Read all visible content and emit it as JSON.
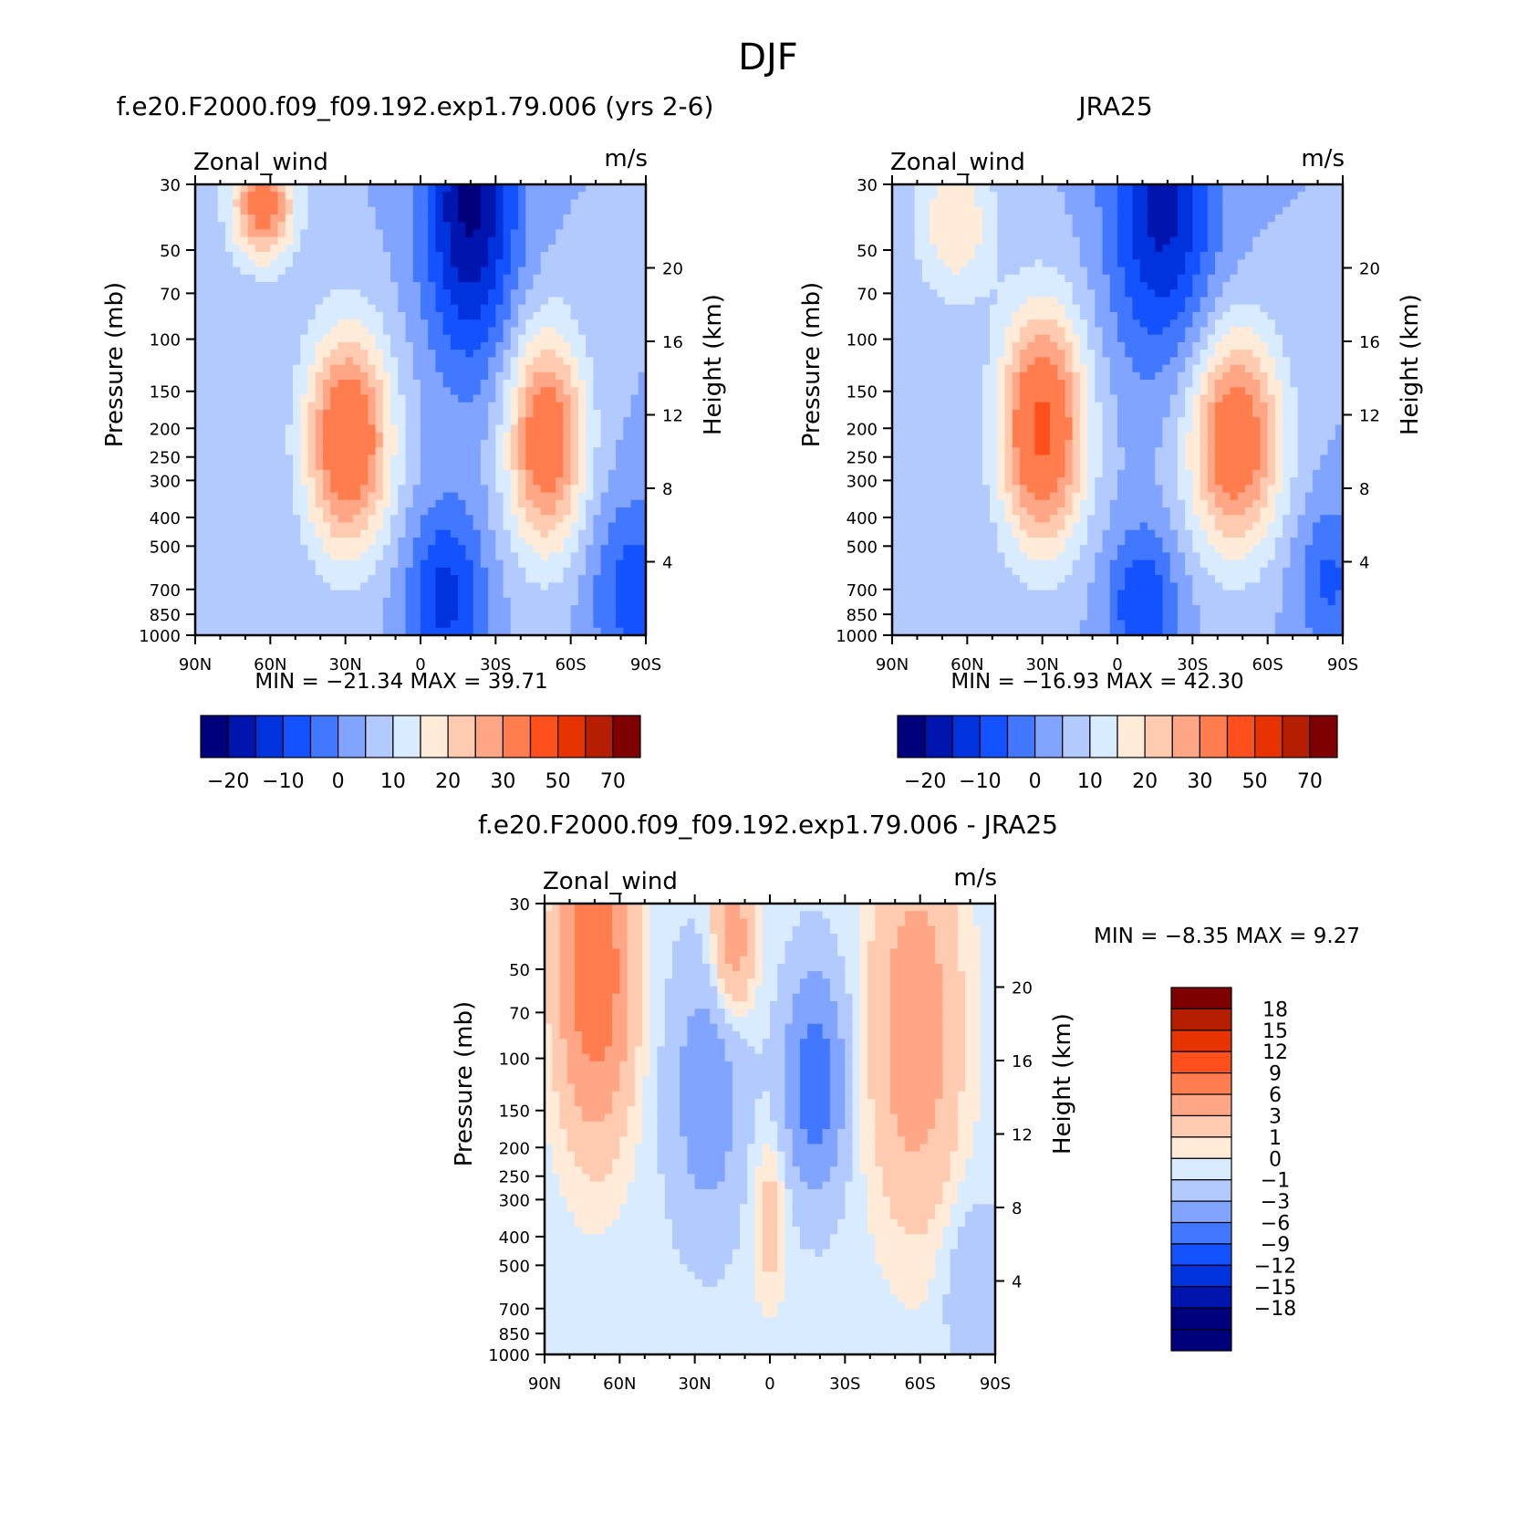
{
  "figure": {
    "title": "DJF"
  },
  "chart_data": [
    {
      "type": "heatmap",
      "id": "model",
      "title": "f.e20.F2000.f09_f09.192.exp1.79.006 (yrs 2-6)",
      "left_label": "Zonal_wind",
      "right_label": "m/s",
      "ylabel": "Pressure (mb)",
      "ylabel_right": "Height (km)",
      "x_ticks": [
        "90N",
        "60N",
        "30N",
        "0",
        "30S",
        "60S",
        "90S"
      ],
      "x_tick_values": [
        90,
        60,
        30,
        0,
        -30,
        -60,
        -90
      ],
      "x_range": [
        90,
        -90
      ],
      "y_ticks": [
        "30",
        "50",
        "70",
        "100",
        "150",
        "200",
        "250",
        "300",
        "400",
        "500",
        "700",
        "850",
        "1000"
      ],
      "y_tick_values": [
        30,
        50,
        70,
        100,
        150,
        200,
        250,
        300,
        400,
        500,
        700,
        850,
        1000
      ],
      "y_range": [
        1000,
        30
      ],
      "height_ticks": [
        "4",
        "8",
        "12",
        "16",
        "20"
      ],
      "min_label": "MIN =",
      "min_value": "-21.34",
      "max_label": "MAX =",
      "max_value": "39.71",
      "colorbar_labels": [
        "-20",
        "-10",
        "0",
        "10",
        "20",
        "30",
        "50",
        "70"
      ],
      "colorbar_colors": [
        "#00007d",
        "#0014ae",
        "#0033de",
        "#1452ff",
        "#4178ff",
        "#80a4ff",
        "#b3caff",
        "#d9ecff",
        "#ffebd8",
        "#ffcbb0",
        "#ffa686",
        "#ff7d4e",
        "#ff4f1c",
        "#e63300",
        "#b51e00",
        "#7f0000"
      ],
      "features": [
        {
          "lat": 63,
          "p": 35,
          "dlat": 9,
          "dz": 2.2,
          "value": 35
        },
        {
          "lat": 29,
          "p": 220,
          "dlat": 12,
          "dz": 4.2,
          "value": 39.71
        },
        {
          "lat": -50,
          "p": 220,
          "dlat": 11,
          "dz": 4.2,
          "value": 37
        },
        {
          "lat": -20,
          "p": 35,
          "dlat": 13,
          "dz": 6,
          "value": -21.34
        },
        {
          "lat": -10,
          "p": 750,
          "dlat": 11,
          "dz": 3.5,
          "value": -12
        },
        {
          "lat": -85,
          "p": 700,
          "dlat": 12,
          "dz": 3.5,
          "value": -8
        }
      ]
    },
    {
      "type": "heatmap",
      "id": "obs",
      "title": "JRA25",
      "left_label": "Zonal_wind",
      "right_label": "m/s",
      "ylabel": "Pressure (mb)",
      "ylabel_right": "Height (km)",
      "x_ticks": [
        "90N",
        "60N",
        "30N",
        "0",
        "30S",
        "60S",
        "90S"
      ],
      "x_tick_values": [
        90,
        60,
        30,
        0,
        -30,
        -60,
        -90
      ],
      "x_range": [
        90,
        -90
      ],
      "y_ticks": [
        "30",
        "50",
        "70",
        "100",
        "150",
        "200",
        "250",
        "300",
        "400",
        "500",
        "700",
        "850",
        "1000"
      ],
      "y_tick_values": [
        30,
        50,
        70,
        100,
        150,
        200,
        250,
        300,
        400,
        500,
        700,
        850,
        1000
      ],
      "y_range": [
        1000,
        30
      ],
      "height_ticks": [
        "4",
        "8",
        "12",
        "16",
        "20"
      ],
      "min_label": "MIN =",
      "min_value": "-16.93",
      "max_label": "MAX =",
      "max_value": "42.30",
      "colorbar_labels": [
        "-20",
        "-10",
        "0",
        "10",
        "20",
        "30",
        "50",
        "70"
      ],
      "colorbar_colors": [
        "#00007d",
        "#0014ae",
        "#0033de",
        "#1452ff",
        "#4178ff",
        "#80a4ff",
        "#b3caff",
        "#d9ecff",
        "#ffebd8",
        "#ffcbb0",
        "#ffa686",
        "#ff7d4e",
        "#ff4f1c",
        "#e63300",
        "#b51e00",
        "#7f0000"
      ],
      "features": [
        {
          "lat": 65,
          "p": 40,
          "dlat": 11,
          "dz": 3,
          "value": 20
        },
        {
          "lat": 30,
          "p": 200,
          "dlat": 12,
          "dz": 4.5,
          "value": 42.3
        },
        {
          "lat": -47,
          "p": 220,
          "dlat": 13,
          "dz": 4.2,
          "value": 38
        },
        {
          "lat": -18,
          "p": 35,
          "dlat": 15,
          "dz": 6,
          "value": -16.93
        },
        {
          "lat": -10,
          "p": 800,
          "dlat": 10,
          "dz": 3,
          "value": -10
        },
        {
          "lat": -85,
          "p": 650,
          "dlat": 10,
          "dz": 3,
          "value": -6
        }
      ]
    },
    {
      "type": "heatmap",
      "id": "diff",
      "title": "f.e20.F2000.f09_f09.192.exp1.79.006 - JRA25",
      "left_label": "Zonal_wind",
      "right_label": "m/s",
      "ylabel": "Pressure (mb)",
      "ylabel_right": "Height (km)",
      "x_ticks": [
        "90N",
        "60N",
        "30N",
        "0",
        "30S",
        "60S",
        "90S"
      ],
      "x_tick_values": [
        90,
        60,
        30,
        0,
        -30,
        -60,
        -90
      ],
      "x_range": [
        90,
        -90
      ],
      "y_ticks": [
        "30",
        "50",
        "70",
        "100",
        "150",
        "200",
        "250",
        "300",
        "400",
        "500",
        "700",
        "850",
        "1000"
      ],
      "y_tick_values": [
        30,
        50,
        70,
        100,
        150,
        200,
        250,
        300,
        400,
        500,
        700,
        850,
        1000
      ],
      "y_range": [
        1000,
        30
      ],
      "height_ticks": [
        "4",
        "8",
        "12",
        "16",
        "20"
      ],
      "min_label": "MIN =",
      "min_value": "-8.35",
      "max_label": "MAX =",
      "max_value": "9.27",
      "colorbar_labels": [
        "18",
        "15",
        "12",
        "9",
        "6",
        "3",
        "1",
        "0",
        "-1",
        "-3",
        "-6",
        "-9",
        "-12",
        "-15",
        "-18"
      ],
      "colorbar_colors": [
        "#7f0000",
        "#b51e00",
        "#e63300",
        "#ff4f1c",
        "#ff7d4e",
        "#ffa686",
        "#ffcbb0",
        "#ffebd8",
        "#d9ecff",
        "#b3caff",
        "#80a4ff",
        "#4178ff",
        "#1452ff",
        "#0033de",
        "#0014ae",
        "#00007d"
      ],
      "features": [
        {
          "lat": 70,
          "p": 50,
          "dlat": 10,
          "dz": 6,
          "value": 9
        },
        {
          "lat": 15,
          "p": 40,
          "dlat": 6,
          "dz": 3,
          "value": 5
        },
        {
          "lat": -58,
          "p": 80,
          "dlat": 12,
          "dz": 7,
          "value": 5
        },
        {
          "lat": -18,
          "p": 120,
          "dlat": 8,
          "dz": 4,
          "value": -8.35
        },
        {
          "lat": 25,
          "p": 130,
          "dlat": 10,
          "dz": 5,
          "value": -5
        },
        {
          "lat": 0,
          "p": 350,
          "dlat": 5,
          "dz": 3,
          "value": 2
        },
        {
          "lat": -82,
          "p": 600,
          "dlat": 8,
          "dz": 3,
          "value": -3
        }
      ]
    }
  ]
}
